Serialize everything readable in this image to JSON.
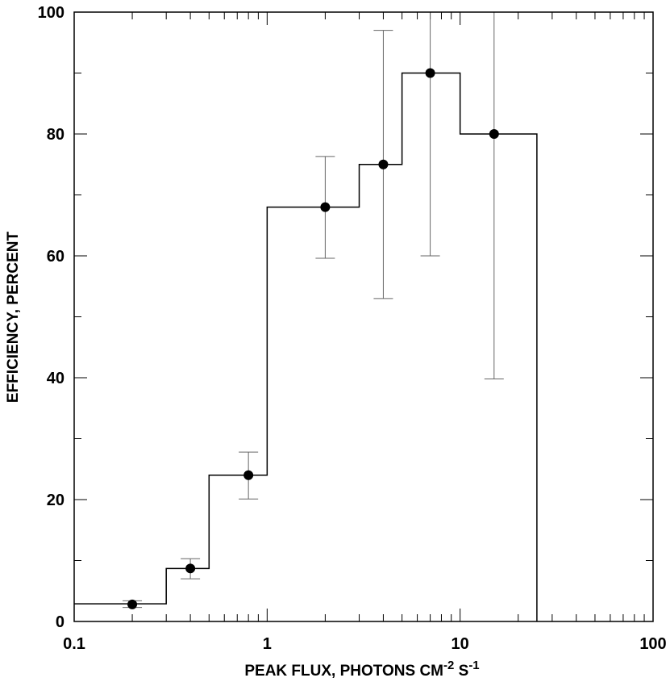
{
  "chart_data": {
    "type": "step-line",
    "x_scale": "log",
    "xlim": [
      0.1,
      100
    ],
    "ylim": [
      0,
      100
    ],
    "xlabel_prefix": "PEAK FLUX, PHOTONS CM",
    "xlabel_sup1": "-2",
    "xlabel_mid": " S",
    "xlabel_sup2": "-1",
    "ylabel": "EFFICIENCY, PERCENT",
    "x_ticks": [
      {
        "value": 0.1,
        "label": "0.1"
      },
      {
        "value": 1,
        "label": "1"
      },
      {
        "value": 10,
        "label": "10"
      },
      {
        "value": 100,
        "label": "100"
      }
    ],
    "y_ticks": [
      {
        "value": 0,
        "label": "0"
      },
      {
        "value": 20,
        "label": "20"
      },
      {
        "value": 40,
        "label": "40"
      },
      {
        "value": 60,
        "label": "60"
      },
      {
        "value": 80,
        "label": "80"
      },
      {
        "value": 100,
        "label": "100"
      }
    ],
    "histogram_bins": [
      {
        "x_start": 0.1,
        "x_end": 0.3,
        "y": 2.9
      },
      {
        "x_start": 0.3,
        "x_end": 0.5,
        "y": 8.7
      },
      {
        "x_start": 0.5,
        "x_end": 1,
        "y": 24
      },
      {
        "x_start": 1,
        "x_end": 3,
        "y": 68
      },
      {
        "x_start": 3,
        "x_end": 5,
        "y": 75
      },
      {
        "x_start": 5,
        "x_end": 10,
        "y": 90
      },
      {
        "x_start": 10,
        "x_end": 25,
        "y": 80
      }
    ],
    "points": [
      {
        "x": 0.2,
        "y": 2.8,
        "err_low": 2.3,
        "err_high": 3.4
      },
      {
        "x": 0.4,
        "y": 8.7,
        "err_low": 7.0,
        "err_high": 10.3
      },
      {
        "x": 0.8,
        "y": 24,
        "err_low": 20.1,
        "err_high": 27.8
      },
      {
        "x": 2,
        "y": 68,
        "err_low": 59.6,
        "err_high": 76.3
      },
      {
        "x": 4,
        "y": 75,
        "err_low": 53,
        "err_high": 97
      },
      {
        "x": 7,
        "y": 90,
        "err_low": 60,
        "err_high": 100
      },
      {
        "x": 15,
        "y": 80,
        "err_low": 39.8,
        "err_high": 100
      }
    ]
  }
}
